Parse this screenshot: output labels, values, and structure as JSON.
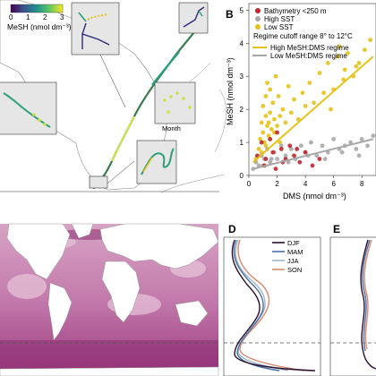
{
  "figure": {
    "panels": [
      {
        "letter": "B"
      },
      {
        "letter": "D"
      },
      {
        "letter": "E"
      }
    ],
    "colorbar": {
      "label": "MeSH (nmol dm⁻³)",
      "ticks": [
        "0",
        "1",
        "2",
        "3"
      ]
    },
    "inset_month_label": "Month",
    "panel_d_legend": [
      {
        "name": "DJF",
        "color": "#2a0f2e"
      },
      {
        "name": "MAM",
        "color": "#4a6fa5"
      },
      {
        "name": "JJA",
        "color": "#9fb6c9"
      },
      {
        "name": "SON",
        "color": "#d98a6e"
      }
    ]
  },
  "chart_data": {
    "type": "scatter",
    "xlabel": "DMS (nmol dm⁻³)",
    "ylabel": "MeSH (nmol dm⁻³)",
    "xlim": [
      0,
      9
    ],
    "ylim": [
      0,
      5.2
    ],
    "x_ticks": [
      "0",
      "2",
      "4",
      "6",
      "8"
    ],
    "y_ticks": [
      "0",
      "1",
      "2",
      "3",
      "4",
      "5"
    ],
    "legend": [
      {
        "name": "Bathymetry <250 m",
        "color": "#c0272d"
      },
      {
        "name": "High SST",
        "color": "#a8a8a8"
      },
      {
        "name": "Low SST",
        "color": "#e6c21a"
      }
    ],
    "regime_note": "Regime cutoff range 8° to 12°C",
    "lines": [
      {
        "name": "High MeSH:DMS regime",
        "color": "#e6c21a",
        "x": [
          0.3,
          8.8
        ],
        "y": [
          0.4,
          3.6
        ]
      },
      {
        "name": "Low MeSH:DMS regime",
        "color": "#a8a8a8",
        "x": [
          0.3,
          8.8
        ],
        "y": [
          0.2,
          1.1
        ]
      }
    ],
    "series": [
      {
        "name": "Low SST",
        "color": "#e6c21a",
        "x": [
          0.5,
          0.7,
          0.8,
          0.9,
          1.0,
          1.0,
          1.1,
          1.2,
          1.2,
          1.3,
          1.3,
          1.4,
          1.5,
          1.5,
          1.6,
          1.7,
          1.8,
          1.9,
          2.0,
          2.1,
          2.2,
          2.4,
          2.6,
          2.8,
          3.0,
          3.2,
          3.5,
          3.8,
          4.0,
          4.3,
          4.6,
          5.0,
          5.3,
          5.6,
          6.0,
          6.3,
          6.7,
          7.0,
          7.4,
          7.8,
          8.2,
          8.6,
          1.2,
          1.5,
          1.8,
          2.2,
          0.9,
          1.4,
          6.4,
          7.6,
          5.8,
          6.8
        ],
        "y": [
          0.5,
          0.8,
          1.1,
          1.6,
          1.3,
          2.1,
          1.0,
          1.8,
          2.4,
          1.5,
          2.8,
          1.2,
          1.9,
          2.6,
          1.4,
          2.2,
          1.7,
          3.0,
          1.5,
          2.4,
          1.8,
          2.0,
          1.6,
          2.7,
          1.9,
          2.3,
          1.7,
          2.5,
          2.1,
          2.8,
          2.2,
          3.1,
          2.5,
          3.4,
          2.6,
          3.6,
          2.9,
          3.7,
          3.0,
          3.4,
          3.8,
          4.1,
          0.9,
          1.1,
          1.3,
          1.0,
          0.7,
          1.6,
          3.9,
          3.3,
          2.0,
          3.2
        ]
      },
      {
        "name": "High SST",
        "color": "#a8a8a8",
        "x": [
          0.3,
          0.5,
          0.7,
          0.9,
          1.1,
          1.3,
          1.5,
          1.8,
          2.0,
          2.3,
          2.6,
          3.0,
          3.3,
          3.7,
          4.0,
          4.4,
          4.8,
          5.2,
          5.6,
          6.0,
          6.4,
          6.8,
          7.2,
          7.6,
          8.0,
          8.4,
          8.8,
          1.0,
          1.6,
          2.8,
          4.2,
          5.4,
          6.6,
          7.8
        ],
        "y": [
          0.2,
          0.4,
          0.3,
          0.6,
          0.5,
          0.8,
          0.4,
          0.7,
          0.5,
          0.9,
          0.6,
          0.8,
          0.5,
          0.9,
          0.7,
          1.0,
          0.6,
          0.9,
          0.7,
          1.1,
          0.8,
          0.9,
          1.0,
          0.8,
          1.1,
          0.9,
          1.2,
          0.3,
          0.5,
          0.4,
          0.6,
          0.5,
          0.7,
          0.6
        ]
      },
      {
        "name": "Bathymetry <250 m",
        "color": "#c0272d",
        "x": [
          0.6,
          0.9,
          1.2,
          1.5,
          1.7,
          2.0,
          2.3,
          2.6,
          2.9,
          3.2,
          3.6,
          4.0,
          4.5,
          5.0,
          1.1,
          1.9,
          2.4,
          3.4
        ],
        "y": [
          0.6,
          1.0,
          0.5,
          1.1,
          0.7,
          1.3,
          0.8,
          0.5,
          0.9,
          0.6,
          0.4,
          0.7,
          0.3,
          0.5,
          0.3,
          0.2,
          0.4,
          0.8
        ]
      }
    ]
  }
}
